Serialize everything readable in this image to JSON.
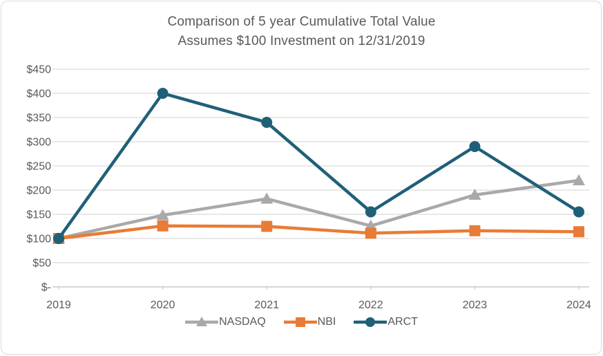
{
  "title": {
    "line1": "Comparison of 5 year Cumulative Total Value",
    "line2": "Assumes $100 Investment on 12/31/2019"
  },
  "chart_data": {
    "type": "line",
    "title": "Comparison of 5 year Cumulative Total Value — Assumes $100 Investment on 12/31/2019",
    "xlabel": "",
    "ylabel": "",
    "categories": [
      "2019",
      "2020",
      "2021",
      "2022",
      "2023",
      "2024"
    ],
    "series": [
      {
        "name": "NASDAQ",
        "marker": "triangle",
        "color": "#a9a9a9",
        "values": [
          100,
          148,
          182,
          126,
          190,
          220
        ]
      },
      {
        "name": "NBI",
        "marker": "square",
        "color": "#e87c36",
        "values": [
          100,
          126,
          125,
          111,
          116,
          114
        ]
      },
      {
        "name": "ARCT",
        "marker": "circle",
        "color": "#1f6078",
        "values": [
          100,
          400,
          340,
          155,
          290,
          155
        ]
      }
    ],
    "y_ticks": [
      "$450",
      "$400",
      "$350",
      "$300",
      "$250",
      "$200",
      "$150",
      "$100",
      "$50",
      "$-"
    ],
    "ylim": [
      0,
      450
    ],
    "y_step": 50,
    "grid": true,
    "legend_position": "bottom"
  },
  "colors": {
    "text": "#595959",
    "gridline": "#d9d9d9",
    "axis": "#bfbfbf",
    "background": "#ffffff",
    "border": "#d9d9d9"
  }
}
